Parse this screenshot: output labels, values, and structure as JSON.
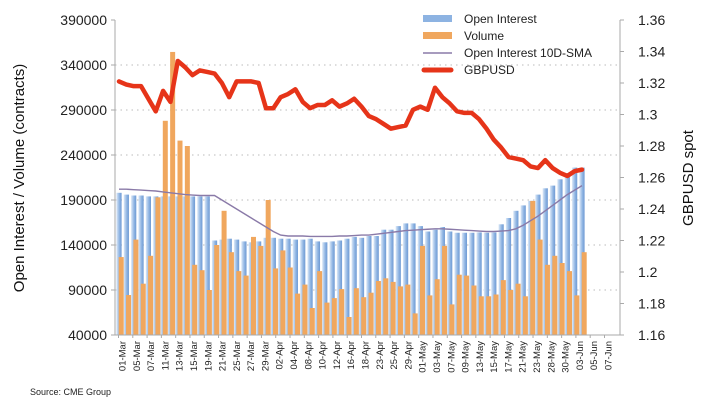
{
  "chart_data": {
    "type": "bar+line",
    "source": "Source: CME Group",
    "ylabel_left": "Open Interest / Volume (contracts)",
    "ylabel_right": "GBPUSD spot",
    "ylim_left": [
      40000,
      390000
    ],
    "yticks_left": [
      "390000",
      "340000",
      "290000",
      "240000",
      "190000",
      "140000",
      "90000",
      "40000"
    ],
    "ylim_right": [
      1.16,
      1.36
    ],
    "yticks_right": [
      "1.36",
      "1.34",
      "1.32",
      "1.3",
      "1.28",
      "1.26",
      "1.24",
      "1.22",
      "1.2",
      "1.18",
      "1.16"
    ],
    "x_tick_labels": [
      "01-Mar",
      "05-Mar",
      "07-Mar",
      "11-Mar",
      "13-Mar",
      "15-Mar",
      "19-Mar",
      "21-Mar",
      "25-Mar",
      "27-Mar",
      "29-Mar",
      "02-Apr",
      "04-Apr",
      "08-Apr",
      "10-Apr",
      "12-Apr",
      "16-Apr",
      "18-Apr",
      "23-Apr",
      "25-Apr",
      "29-Apr",
      "01-May",
      "03-May",
      "07-May",
      "09-May",
      "13-May",
      "15-May",
      "17-May",
      "21-May",
      "23-May",
      "28-May",
      "30-May",
      "03-Jun",
      "05-Jun",
      "07-Jun"
    ],
    "grid": "horizontal dotted",
    "legend_position": "top-right",
    "series": [
      {
        "name": "Open Interest",
        "type": "bar",
        "axis": "left",
        "color": "#8db3e2",
        "values": [
          198000,
          196000,
          195000,
          195000,
          194000,
          194000,
          194000,
          194000,
          194000,
          194000,
          194000,
          194000,
          194000,
          145000,
          146000,
          147000,
          146000,
          144000,
          143000,
          144000,
          148000,
          148000,
          147000,
          147000,
          146000,
          146000,
          147000,
          144000,
          143000,
          144000,
          145000,
          147000,
          149000,
          148000,
          150000,
          150000,
          157000,
          157000,
          161000,
          164000,
          164000,
          161000,
          155000,
          157000,
          160000,
          155000,
          153600,
          153600,
          153600,
          154000,
          153600,
          154000,
          163000,
          170000,
          178000,
          184000,
          189000,
          196000,
          203000,
          206000,
          213000,
          220000,
          226000,
          226000
        ]
      },
      {
        "name": "Volume",
        "type": "bar",
        "axis": "left",
        "color": "#f0a75e",
        "values": [
          126600,
          84400,
          146000,
          97000,
          128000,
          193000,
          278000,
          354500,
          256000,
          250000,
          118000,
          112000,
          90000,
          140000,
          178000,
          132000,
          111000,
          106000,
          149000,
          139000,
          190000,
          114000,
          134000,
          115000,
          86000,
          96000,
          70000,
          111000,
          76000,
          81000,
          91000,
          60000,
          92000,
          82000,
          87000,
          100000,
          103000,
          99000,
          94000,
          96000,
          64000,
          139000,
          84000,
          102000,
          139000,
          74000,
          107000,
          106000,
          95000,
          83000,
          83000,
          85000,
          101000,
          90000,
          97000,
          83000,
          189000,
          146000,
          118000,
          128000,
          120000,
          111000,
          84000,
          132000
        ]
      },
      {
        "name": "Open Interest 10D-SMA",
        "type": "line",
        "axis": "left",
        "color": "#8a7aa8",
        "values": [
          202000,
          202000,
          201500,
          201000,
          200500,
          200000,
          199000,
          198000,
          197000,
          196000,
          195500,
          195000,
          195000,
          195000,
          190000,
          185000,
          180000,
          175000,
          170000,
          165000,
          160000,
          155000,
          151000,
          150000,
          150000,
          150000,
          149500,
          149500,
          149500,
          149500,
          150000,
          150000,
          150500,
          151000,
          151000,
          152000,
          153000,
          154000,
          155000,
          156000,
          156500,
          157000,
          157500,
          158000,
          158000,
          157500,
          157000,
          156500,
          156000,
          155500,
          155000,
          155000,
          155500,
          156000,
          158000,
          162000,
          167000,
          172000,
          178000,
          184000,
          190000,
          196000,
          201000,
          206000
        ]
      },
      {
        "name": "GBPUSD",
        "type": "line",
        "axis": "right",
        "color": "#e63419",
        "values": [
          1.321,
          1.319,
          1.318,
          1.318,
          1.31,
          1.302,
          1.315,
          1.308,
          1.334,
          1.33,
          1.325,
          1.328,
          1.327,
          1.326,
          1.32,
          1.311,
          1.321,
          1.321,
          1.321,
          1.32,
          1.304,
          1.304,
          1.311,
          1.313,
          1.316,
          1.308,
          1.304,
          1.306,
          1.306,
          1.309,
          1.305,
          1.307,
          1.31,
          1.305,
          1.299,
          1.297,
          1.294,
          1.291,
          1.292,
          1.293,
          1.303,
          1.305,
          1.303,
          1.317,
          1.311,
          1.307,
          1.302,
          1.301,
          1.301,
          1.297,
          1.291,
          1.284,
          1.279,
          1.273,
          1.272,
          1.271,
          1.267,
          1.266,
          1.271,
          1.266,
          1.263,
          1.261,
          1.264,
          1.265
        ]
      }
    ]
  }
}
